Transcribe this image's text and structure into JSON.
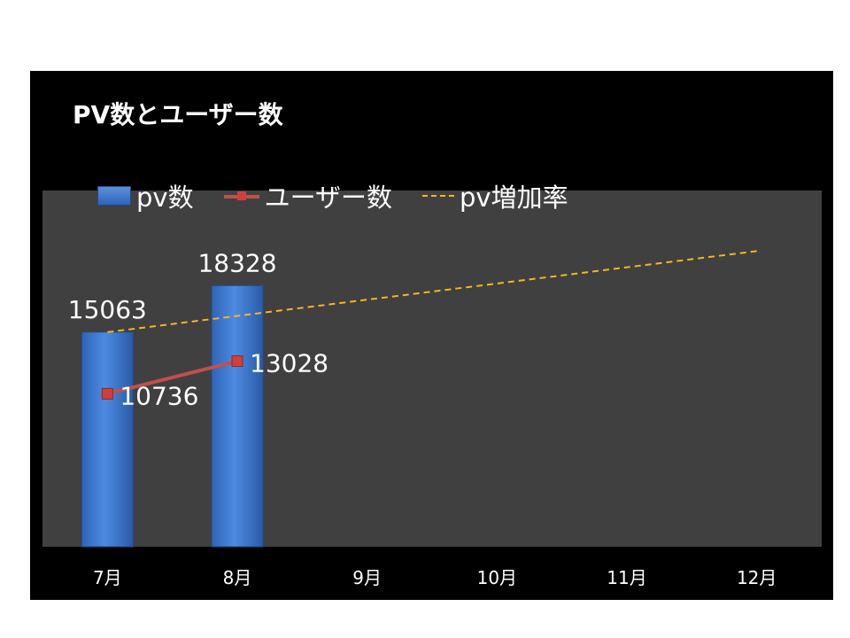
{
  "chart_data": {
    "type": "bar",
    "title": "PV数とユーザー数",
    "categories": [
      "7月",
      "8月",
      "9月",
      "10月",
      "11月",
      "12月"
    ],
    "series": [
      {
        "name": "pv数",
        "kind": "bar",
        "color": "#3f7bd4",
        "values": [
          15063,
          18328,
          null,
          null,
          null,
          null
        ]
      },
      {
        "name": "ユーザー数",
        "kind": "line",
        "color": "#c0504d",
        "values": [
          10736,
          13028,
          null,
          null,
          null,
          null
        ]
      },
      {
        "name": "pv増加率",
        "kind": "trendline",
        "color": "#f2b824",
        "values": [
          15063,
          16200,
          17337,
          18474,
          19611,
          20748
        ]
      }
    ],
    "data_labels": {
      "pv数": [
        "15063",
        "18328"
      ],
      "ユーザー数": [
        "10736",
        "13028"
      ]
    },
    "ylim": [
      0,
      25000
    ],
    "grid": false,
    "legend_position": "top",
    "colors": {
      "panel": "#000000",
      "plot_area": "#404040",
      "text": "#ffffff"
    }
  }
}
